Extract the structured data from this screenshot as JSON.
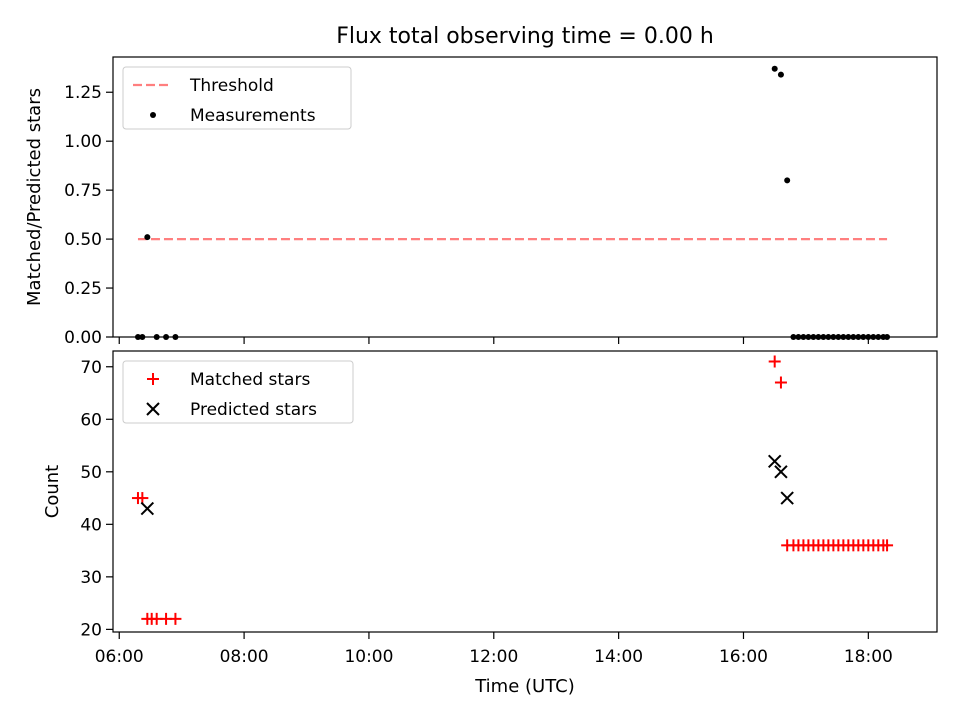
{
  "figure": {
    "title": "Flux total observing time = 0.00 h"
  },
  "chart_data": [
    {
      "type": "scatter",
      "title": "",
      "xlabel": "",
      "ylabel": "Matched/Predicted stars",
      "xlim_hours": [
        5.9,
        19.1
      ],
      "ylim": [
        0,
        1.43
      ],
      "yticks": [
        0.0,
        0.25,
        0.5,
        0.75,
        1.0,
        1.25
      ],
      "ytick_labels": [
        "0.00",
        "0.25",
        "0.50",
        "0.75",
        "1.00",
        "1.25"
      ],
      "grid": false,
      "legend_position": "top-left",
      "legend": [
        "Threshold",
        "Measurements"
      ],
      "threshold": {
        "name": "Threshold",
        "value": 0.5,
        "x_start": 6.3,
        "x_end": 18.3,
        "color": "#ff7f7f",
        "style": "dashed"
      },
      "series": [
        {
          "name": "Measurements",
          "color": "#000000",
          "marker": "dot",
          "x": [
            6.3,
            6.37,
            6.45,
            6.6,
            6.75,
            6.9,
            16.5,
            16.6,
            16.7,
            16.8,
            16.88,
            16.96,
            17.04,
            17.12,
            17.2,
            17.28,
            17.36,
            17.44,
            17.52,
            17.6,
            17.68,
            17.76,
            17.84,
            17.92,
            18.0,
            18.08,
            18.16,
            18.24,
            18.3
          ],
          "y": [
            0,
            0,
            0.51,
            0,
            0,
            0,
            1.37,
            1.34,
            0.8,
            0,
            0,
            0,
            0,
            0,
            0,
            0,
            0,
            0,
            0,
            0,
            0,
            0,
            0,
            0,
            0,
            0,
            0,
            0,
            0
          ]
        }
      ]
    },
    {
      "type": "scatter",
      "title": "",
      "xlabel": "Time (UTC)",
      "ylabel": "Count",
      "xlim_hours": [
        5.9,
        19.1
      ],
      "xticks_hours": [
        6,
        8,
        10,
        12,
        14,
        16,
        18
      ],
      "xtick_labels": [
        "06:00",
        "08:00",
        "10:00",
        "12:00",
        "14:00",
        "16:00",
        "18:00"
      ],
      "ylim": [
        19.5,
        73
      ],
      "yticks": [
        20,
        30,
        40,
        50,
        60,
        70
      ],
      "ytick_labels": [
        "20",
        "30",
        "40",
        "50",
        "60",
        "70"
      ],
      "grid": false,
      "legend_position": "top-left",
      "legend": [
        "Matched stars",
        "Predicted stars"
      ],
      "series": [
        {
          "name": "Matched stars",
          "color": "#ff0000",
          "marker": "plus",
          "x": [
            6.3,
            6.37,
            6.45,
            6.52,
            6.6,
            6.75,
            6.9,
            16.5,
            16.6,
            16.7,
            16.8,
            16.88,
            16.96,
            17.04,
            17.12,
            17.2,
            17.28,
            17.36,
            17.44,
            17.52,
            17.6,
            17.68,
            17.76,
            17.84,
            17.92,
            18.0,
            18.08,
            18.16,
            18.24,
            18.3
          ],
          "y": [
            45,
            45,
            22,
            22,
            22,
            22,
            22,
            71,
            67,
            36,
            36,
            36,
            36,
            36,
            36,
            36,
            36,
            36,
            36,
            36,
            36,
            36,
            36,
            36,
            36,
            36,
            36,
            36,
            36,
            36
          ]
        },
        {
          "name": "Predicted stars",
          "color": "#000000",
          "marker": "x",
          "x": [
            6.45,
            16.5,
            16.6,
            16.7
          ],
          "y": [
            43,
            52,
            50,
            45
          ]
        }
      ]
    }
  ]
}
